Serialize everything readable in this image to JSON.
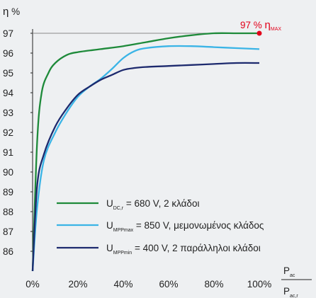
{
  "chart_data": {
    "type": "line",
    "ylabel": {
      "symbol": "η",
      "unit": "%"
    },
    "xlabel": {
      "numerator_main": "P",
      "numerator_sub": "ac",
      "denominator_main": "P",
      "denominator_sub": "ac,r"
    },
    "ylim": [
      85,
      97
    ],
    "xlim": [
      0,
      100
    ],
    "yticks": [
      86,
      87,
      88,
      89,
      90,
      91,
      92,
      93,
      94,
      95,
      96,
      97
    ],
    "xticks": [
      0,
      20,
      40,
      60,
      80,
      100
    ],
    "xtick_labels": [
      "0%",
      "20%",
      "40%",
      "60%",
      "80%",
      "100%"
    ],
    "grid": false,
    "annotation": {
      "text_value": "97 %",
      "text_symbol": "η",
      "text_sub": "MAX",
      "x": 100,
      "y": 97,
      "color": "#e2001a"
    },
    "series": [
      {
        "name_main": "U",
        "name_sub": "DC,r",
        "name_rest": "= 680 V, 2 κλάδοι",
        "color": "#1e8a3a",
        "x": [
          0,
          2,
          4,
          7,
          10,
          15,
          20,
          30,
          40,
          50,
          60,
          70,
          80,
          90,
          100
        ],
        "y": [
          85,
          91.5,
          94.0,
          95.0,
          95.5,
          95.9,
          96.05,
          96.2,
          96.35,
          96.55,
          96.75,
          96.9,
          97.0,
          97.0,
          97.0
        ]
      },
      {
        "name_main": "U",
        "name_sub": "MPPmax",
        "name_rest": "= 850 V, μεμονωμένος κλάδος",
        "color": "#3ab4e6",
        "x": [
          0,
          2,
          5,
          10,
          15,
          20,
          25,
          30,
          35,
          40,
          45,
          50,
          60,
          70,
          80,
          90,
          100
        ],
        "y": [
          85,
          88.2,
          90.6,
          92.0,
          93.0,
          93.8,
          94.3,
          94.7,
          95.2,
          95.75,
          96.1,
          96.25,
          96.35,
          96.35,
          96.3,
          96.25,
          96.2
        ]
      },
      {
        "name_main": "U",
        "name_sub": "MPPmin",
        "name_rest": "= 400 V, 2 παράλληλοι κλάδοι",
        "color": "#1d2a6e",
        "x": [
          0,
          2,
          5,
          10,
          15,
          20,
          25,
          30,
          35,
          40,
          45,
          50,
          60,
          70,
          80,
          90,
          100
        ],
        "y": [
          85,
          89.3,
          90.9,
          92.3,
          93.2,
          93.9,
          94.3,
          94.65,
          94.9,
          95.15,
          95.25,
          95.3,
          95.35,
          95.4,
          95.45,
          95.5,
          95.5
        ]
      }
    ]
  }
}
